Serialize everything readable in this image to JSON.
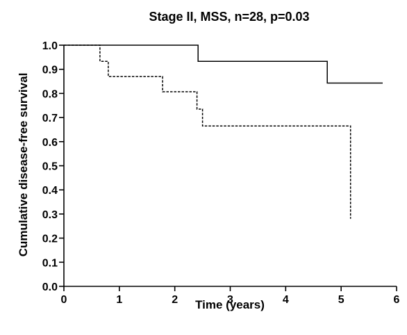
{
  "chart_data": {
    "type": "line",
    "title": "Stage II, MSS, n=28, p=0.03",
    "xlabel": "Time (years)",
    "ylabel": "Cumulative disease-free survival",
    "xlim": [
      0,
      6
    ],
    "ylim": [
      0.0,
      1.0
    ],
    "x_ticks": [
      "0",
      "2",
      "4",
      "6"
    ],
    "x_minor_ticks": [
      "1",
      "3",
      "5"
    ],
    "y_ticks": [
      "0.0",
      "0.1",
      "0.2",
      "0.3",
      "0.4",
      "0.5",
      "0.6",
      "0.7",
      "0.8",
      "0.9",
      "1.0"
    ],
    "grid": false,
    "legend": "none",
    "series": [
      {
        "style": "solid",
        "color": "#000000",
        "step": true,
        "points": [
          [
            0,
            1.0
          ],
          [
            2.42,
            1.0
          ],
          [
            2.42,
            0.933
          ],
          [
            4.75,
            0.933
          ],
          [
            4.75,
            0.843
          ],
          [
            5.75,
            0.843
          ]
        ]
      },
      {
        "style": "dashed",
        "color": "#000000",
        "step": true,
        "points": [
          [
            0,
            1.0
          ],
          [
            0.65,
            1.0
          ],
          [
            0.65,
            0.933
          ],
          [
            0.8,
            0.933
          ],
          [
            0.8,
            0.87
          ],
          [
            1.78,
            0.87
          ],
          [
            1.78,
            0.807
          ],
          [
            2.4,
            0.807
          ],
          [
            2.4,
            0.735
          ],
          [
            2.5,
            0.735
          ],
          [
            2.5,
            0.665
          ],
          [
            5.17,
            0.665
          ],
          [
            5.17,
            0.28
          ]
        ]
      }
    ]
  }
}
